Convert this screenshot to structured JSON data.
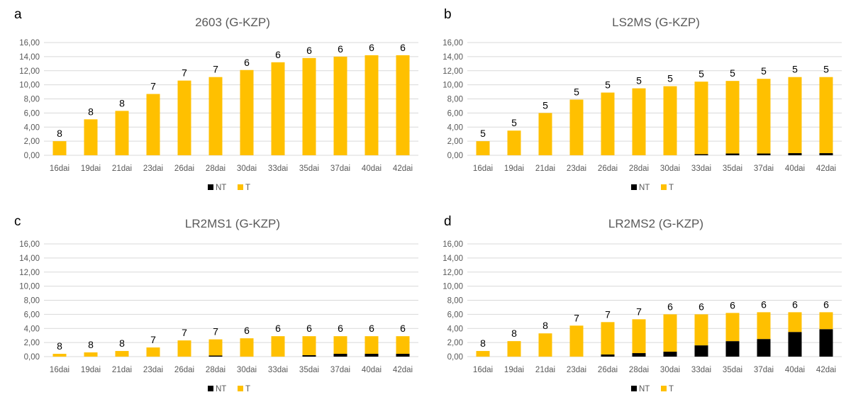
{
  "colors": {
    "NT": "#000000",
    "T": "#FFC000",
    "grid": "#D9D9D9",
    "axis_text": "#595959",
    "title_text": "#595959"
  },
  "chart_data": [
    {
      "type": "bar",
      "stacked": true,
      "panel_letter": "a",
      "title": "2603 (G-KZP)",
      "categories": [
        "16dai",
        "19dai",
        "21dai",
        "23dai",
        "26dai",
        "28dai",
        "30dai",
        "33dai",
        "35dai",
        "37dai",
        "40dai",
        "42dai"
      ],
      "series": [
        {
          "name": "NT",
          "values": [
            0,
            0,
            0,
            0,
            0,
            0,
            0,
            0,
            0,
            0,
            0,
            0
          ]
        },
        {
          "name": "T",
          "values": [
            2.0,
            5.1,
            6.3,
            8.7,
            10.6,
            11.1,
            12.1,
            13.2,
            13.8,
            14.0,
            14.2,
            14.2
          ]
        }
      ],
      "labels": [
        "8",
        "8",
        "8",
        "7",
        "7",
        "7",
        "6",
        "6",
        "6",
        "6",
        "6",
        "6"
      ],
      "yticks": [
        "0,00",
        "2,00",
        "4,00",
        "6,00",
        "8,00",
        "10,00",
        "12,00",
        "14,00",
        "16,00"
      ],
      "ylim": [
        0,
        16
      ],
      "grid": true,
      "legend": "bottom"
    },
    {
      "type": "bar",
      "stacked": true,
      "panel_letter": "b",
      "title": "LS2MS (G-KZP)",
      "categories": [
        "16dai",
        "19dai",
        "21dai",
        "23dai",
        "26dai",
        "28dai",
        "30dai",
        "33dai",
        "35dai",
        "37dai",
        "40dai",
        "42dai"
      ],
      "series": [
        {
          "name": "NT",
          "values": [
            0,
            0,
            0,
            0,
            0,
            0,
            0,
            0.15,
            0.25,
            0.25,
            0.3,
            0.3
          ]
        },
        {
          "name": "T",
          "values": [
            2.0,
            3.5,
            6.0,
            7.9,
            8.9,
            9.5,
            9.8,
            10.3,
            10.3,
            10.6,
            10.8,
            10.8
          ]
        }
      ],
      "labels": [
        "5",
        "5",
        "5",
        "5",
        "5",
        "5",
        "5",
        "5",
        "5",
        "5",
        "5",
        "5"
      ],
      "yticks": [
        "0,00",
        "2,00",
        "4,00",
        "6,00",
        "8,00",
        "10,00",
        "12,00",
        "14,00",
        "16,00"
      ],
      "ylim": [
        0,
        16
      ],
      "grid": true,
      "legend": "bottom"
    },
    {
      "type": "bar",
      "stacked": true,
      "panel_letter": "c",
      "title": "LR2MS1 (G-KZP)",
      "categories": [
        "16dai",
        "19dai",
        "21dai",
        "23dai",
        "26dai",
        "28dai",
        "30dai",
        "33dai",
        "35dai",
        "37dai",
        "40dai",
        "42dai"
      ],
      "series": [
        {
          "name": "NT",
          "values": [
            0,
            0,
            0,
            0,
            0,
            0.15,
            0,
            0,
            0.2,
            0.4,
            0.4,
            0.4
          ]
        },
        {
          "name": "T",
          "values": [
            0.4,
            0.6,
            0.8,
            1.3,
            2.3,
            2.3,
            2.6,
            2.9,
            2.7,
            2.5,
            2.5,
            2.5
          ]
        }
      ],
      "labels": [
        "8",
        "8",
        "8",
        "7",
        "7",
        "7",
        "6",
        "6",
        "6",
        "6",
        "6",
        "6"
      ],
      "yticks": [
        "0,00",
        "2,00",
        "4,00",
        "6,00",
        "8,00",
        "10,00",
        "12,00",
        "14,00",
        "16,00"
      ],
      "ylim": [
        0,
        16
      ],
      "grid": true,
      "legend": "bottom"
    },
    {
      "type": "bar",
      "stacked": true,
      "panel_letter": "d",
      "title": "LR2MS2 (G-KZP)",
      "categories": [
        "16dai",
        "19dai",
        "21dai",
        "23dai",
        "26dai",
        "28dai",
        "30dai",
        "33dai",
        "35dai",
        "37dai",
        "40dai",
        "42dai"
      ],
      "series": [
        {
          "name": "NT",
          "values": [
            0,
            0,
            0,
            0,
            0.3,
            0.5,
            0.7,
            1.6,
            2.2,
            2.5,
            3.5,
            3.9
          ]
        },
        {
          "name": "T",
          "values": [
            0.8,
            2.2,
            3.3,
            4.4,
            4.6,
            4.8,
            5.3,
            4.4,
            4.0,
            3.8,
            2.8,
            2.4
          ]
        }
      ],
      "labels": [
        "8",
        "8",
        "8",
        "7",
        "7",
        "7",
        "6",
        "6",
        "6",
        "6",
        "6",
        "6"
      ],
      "yticks": [
        "0,00",
        "2,00",
        "4,00",
        "6,00",
        "8,00",
        "10,00",
        "12,00",
        "14,00",
        "16,00"
      ],
      "ylim": [
        0,
        16
      ],
      "grid": true,
      "legend": "bottom"
    }
  ]
}
